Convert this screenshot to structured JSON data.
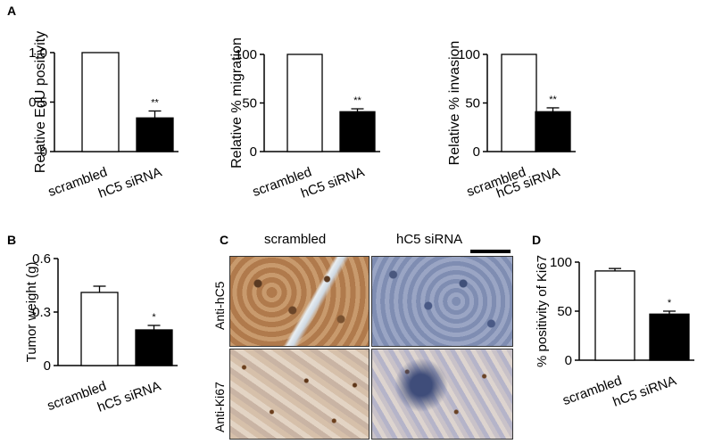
{
  "panels": {
    "A": "A",
    "B": "B",
    "C": "C",
    "D": "D"
  },
  "chart_data": [
    {
      "id": "edu",
      "type": "bar",
      "categories": [
        "scrambled",
        "hC5 siRNA"
      ],
      "values": [
        1.0,
        0.34
      ],
      "errors": [
        0,
        0.07
      ],
      "significance": [
        "",
        "**"
      ],
      "xlabel": "",
      "ylabel": "Relative EdU positivity",
      "ylim": [
        0,
        1.0
      ],
      "yticks": [
        "0",
        "0.5",
        "1.0"
      ],
      "tick_values": [
        0,
        0.5,
        1.0
      ],
      "bar_colors": [
        "#ffffff",
        "#000000"
      ]
    },
    {
      "id": "migration",
      "type": "bar",
      "categories": [
        "scrambled",
        "hC5 siRNA"
      ],
      "values": [
        100,
        41
      ],
      "errors": [
        0,
        3
      ],
      "significance": [
        "",
        "**"
      ],
      "xlabel": "",
      "ylabel": "Relative % migration",
      "ylim": [
        0,
        100
      ],
      "yticks": [
        "0",
        "50",
        "100"
      ],
      "tick_values": [
        0,
        50,
        100
      ],
      "bar_colors": [
        "#ffffff",
        "#000000"
      ]
    },
    {
      "id": "invasion",
      "type": "bar",
      "categories": [
        "scrambled",
        "hC5 siRNA"
      ],
      "values": [
        100,
        41
      ],
      "errors": [
        0,
        4
      ],
      "significance": [
        "",
        "**"
      ],
      "xlabel": "",
      "ylabel": "Relative % invasion",
      "ylim": [
        0,
        100
      ],
      "yticks": [
        "0",
        "50",
        "100"
      ],
      "tick_values": [
        0,
        50,
        100
      ],
      "bar_colors": [
        "#ffffff",
        "#000000"
      ]
    },
    {
      "id": "tumor",
      "type": "bar",
      "categories": [
        "scrambled",
        "hC5 siRNA"
      ],
      "values": [
        0.41,
        0.2
      ],
      "errors": [
        0.035,
        0.025
      ],
      "significance": [
        "",
        "*"
      ],
      "xlabel": "",
      "ylabel": "Tumor weight (g)",
      "ylim": [
        0,
        0.6
      ],
      "yticks": [
        "0",
        "0.3",
        "0.6"
      ],
      "tick_values": [
        0,
        0.3,
        0.6
      ],
      "bar_colors": [
        "#ffffff",
        "#000000"
      ]
    },
    {
      "id": "ki67",
      "type": "bar",
      "categories": [
        "scrambled",
        "hC5 siRNA"
      ],
      "values": [
        91,
        47
      ],
      "errors": [
        2.5,
        3
      ],
      "significance": [
        "",
        "*"
      ],
      "xlabel": "",
      "ylabel": "% positivity of Ki67",
      "ylim": [
        0,
        100
      ],
      "yticks": [
        "0",
        "50",
        "100"
      ],
      "tick_values": [
        0,
        50,
        100
      ],
      "bar_colors": [
        "#ffffff",
        "#000000"
      ]
    }
  ],
  "micrographs": {
    "columns": [
      "scrambled",
      "hC5 siRNA"
    ],
    "rows": [
      "Anti-hC5",
      "Anti-Ki67"
    ]
  }
}
